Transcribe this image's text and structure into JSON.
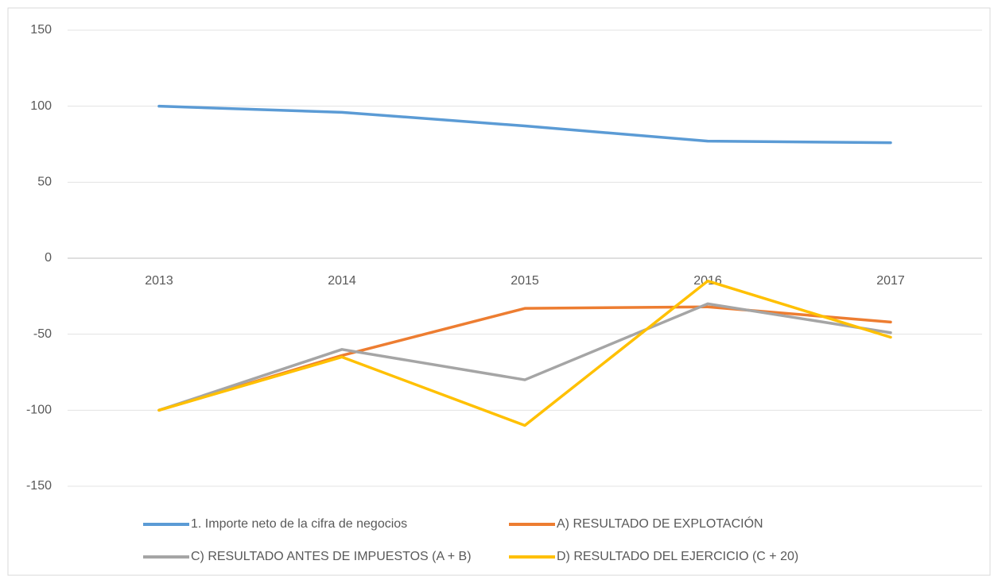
{
  "chart_data": {
    "type": "line",
    "categories": [
      "2013",
      "2014",
      "2015",
      "2016",
      "2017"
    ],
    "series": [
      {
        "name": "1. Importe neto de la cifra de negocios",
        "color": "#5b9bd5",
        "values": [
          100,
          96,
          87,
          77,
          76
        ]
      },
      {
        "name": "A) RESULTADO DE EXPLOTACIÓN",
        "color": "#ed7d31",
        "values": [
          -100,
          -64,
          -33,
          -32,
          -42
        ]
      },
      {
        "name": "C) RESULTADO ANTES DE IMPUESTOS (A + B)",
        "color": "#a5a5a5",
        "values": [
          -100,
          -60,
          -80,
          -30,
          -49
        ]
      },
      {
        "name": "D) RESULTADO DEL EJERCICIO (C + 20)",
        "color": "#ffc000",
        "values": [
          -100,
          -65,
          -110,
          -15,
          -52
        ]
      }
    ],
    "ylim": [
      -150,
      150
    ],
    "yticks": [
      -150,
      -100,
      -50,
      0,
      50,
      100,
      150
    ],
    "grid": true,
    "legend": "bottom"
  }
}
